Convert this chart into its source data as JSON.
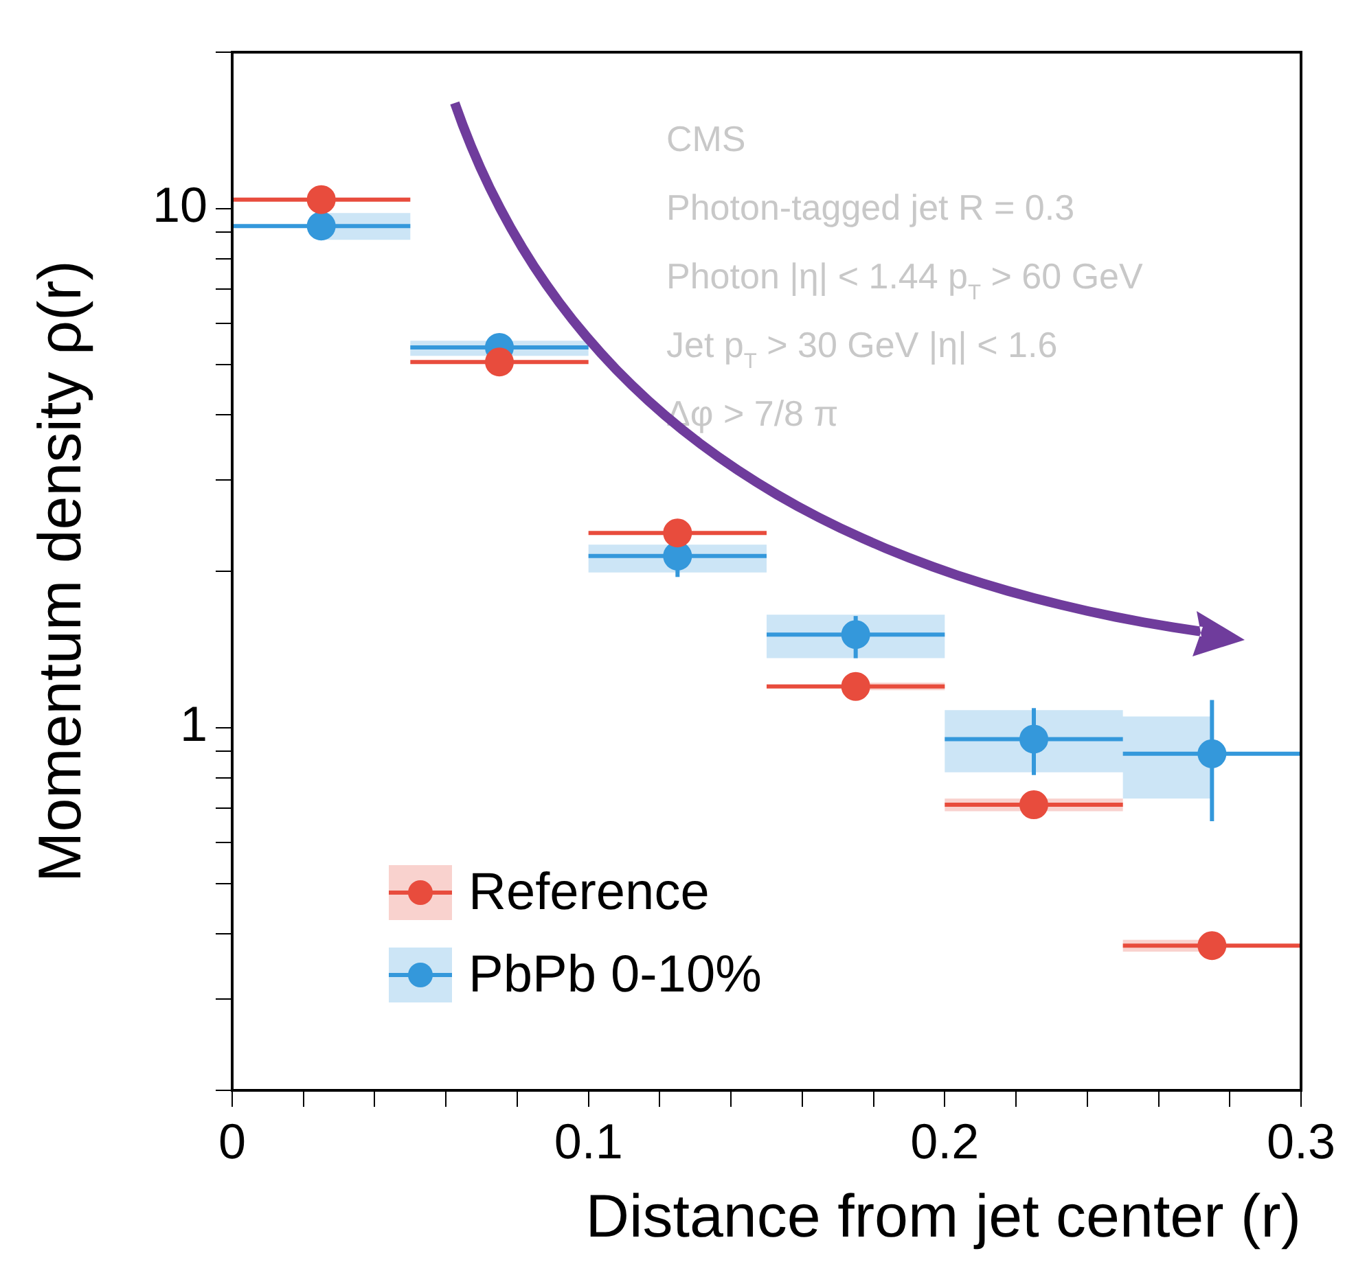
{
  "chart_data": {
    "type": "scatter",
    "xlabel": "Distance from jet center (r)",
    "ylabel": "Momentum density ρ(r)",
    "annotations": [
      "CMS",
      "Photon-tagged jet R = 0.3",
      "Photon |η| < 1.44 p$_{T}$ > 60 GeV",
      "Jet p$_{T}$ > 30 GeV |η| < 1.6",
      "Δφ > 7/8 π"
    ],
    "x": [
      0.025,
      0.075,
      0.125,
      0.175,
      0.225,
      0.275
    ],
    "series": [
      {
        "name": "Reference",
        "color": "#e84c3d",
        "values": [
          10.4,
          5.06,
          2.37,
          1.2,
          0.71,
          0.38
        ],
        "xerrors": [
          0.025,
          0.025,
          0.025,
          0.025,
          0.025,
          0.025
        ],
        "lower": [
          null,
          null,
          null,
          1.18,
          0.69,
          0.37
        ],
        "upper": [
          null,
          null,
          null,
          1.22,
          0.73,
          0.39
        ]
      },
      {
        "name": "PbPb 0-10%",
        "color": "#3498db",
        "values": [
          9.25,
          5.4,
          2.14,
          1.51,
          0.95,
          0.89
        ],
        "xerrors": [
          0.025,
          0.025,
          0.025,
          0.025,
          0.025,
          0.025
        ],
        "errors": [
          null,
          null,
          [
            1.95,
            2.14
          ],
          [
            1.36,
            1.64
          ],
          [
            0.81,
            1.09
          ],
          [
            0.66,
            1.13
          ]
        ],
        "lower": [
          8.7,
          5.2,
          1.99,
          1.36,
          0.82,
          0.73
        ],
        "upper": [
          9.8,
          5.56,
          2.25,
          1.65,
          1.08,
          1.05
        ]
      }
    ],
    "marker": "circle",
    "log": "y",
    "grid": false,
    "legend": "bottom left",
    "xlim": [
      0,
      0.3
    ],
    "xticks": [
      0,
      {
        "value": 0.02,
        "label": null
      },
      {
        "value": 0.04,
        "label": null
      },
      {
        "value": 0.06,
        "label": null
      },
      {
        "value": 0.08,
        "label": null
      },
      0.1,
      {
        "value": 0.12,
        "label": null
      },
      {
        "value": 0.14,
        "label": null
      },
      {
        "value": 0.16,
        "label": null
      },
      {
        "value": 0.18,
        "label": null
      },
      0.2,
      {
        "value": 0.22,
        "label": null
      },
      {
        "value": 0.24,
        "label": null
      },
      {
        "value": 0.26,
        "label": null
      },
      {
        "value": 0.28,
        "label": null
      },
      0.3
    ],
    "ylim": [
      0.2,
      20
    ],
    "yticks": [
      {
        "value": 0.2,
        "label": null
      },
      {
        "value": 0.3,
        "label": null
      },
      {
        "value": 0.4,
        "label": null
      },
      {
        "value": 0.5,
        "label": null
      },
      {
        "value": 0.6,
        "label": null
      },
      {
        "value": 0.7,
        "label": null
      },
      {
        "value": 0.8,
        "label": null
      },
      {
        "value": 0.9,
        "label": null
      },
      1,
      {
        "value": 2,
        "label": null
      },
      {
        "value": 3,
        "label": null
      },
      {
        "value": 4,
        "label": null
      },
      {
        "value": 5,
        "label": null
      },
      {
        "value": 6,
        "label": null
      },
      {
        "value": 7,
        "label": null
      },
      {
        "value": 8,
        "label": null
      },
      {
        "value": 9,
        "label": null
      },
      10,
      {
        "value": 20,
        "label": null
      }
    ]
  }
}
